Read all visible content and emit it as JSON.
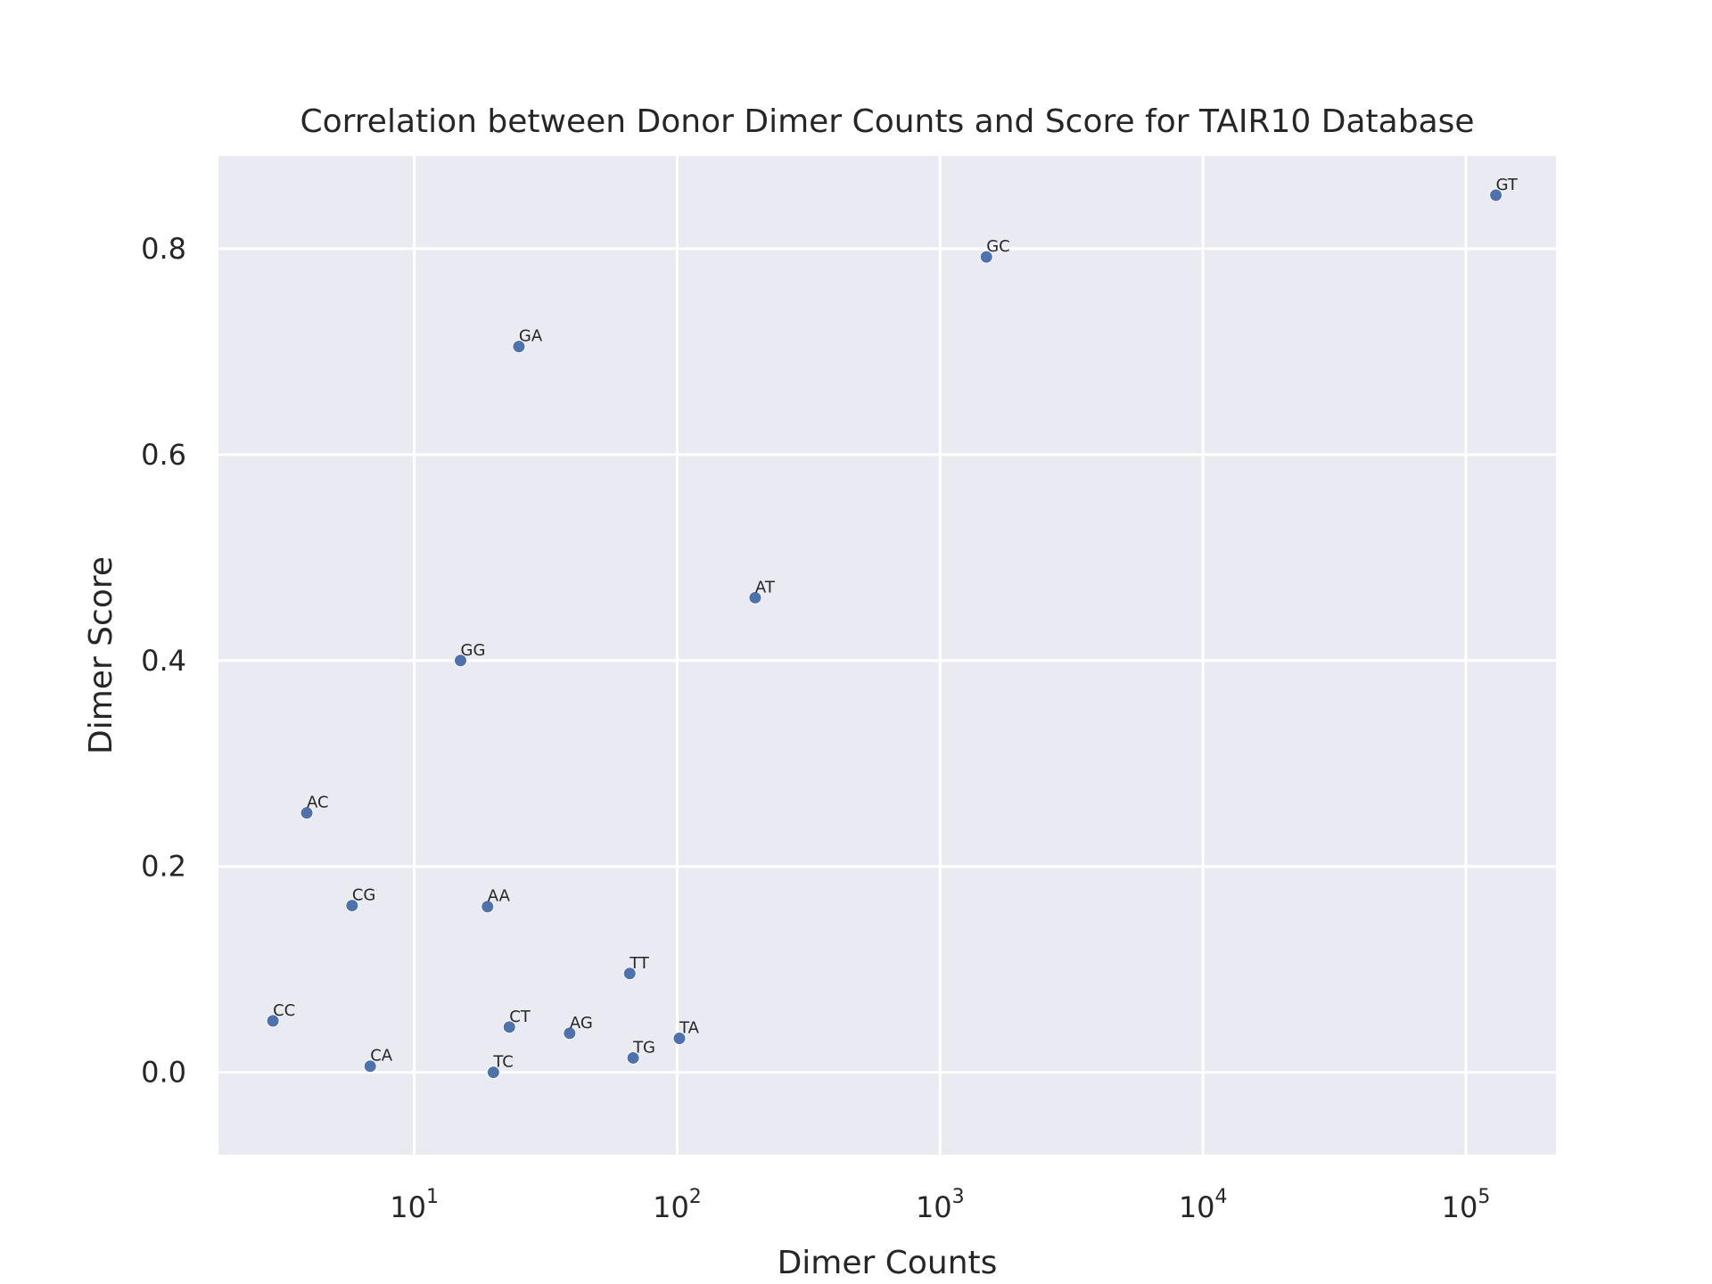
{
  "chart_data": {
    "type": "scatter",
    "title": "Correlation between Donor Dimer Counts and Score for TAIR10 Database",
    "xlabel": "Dimer Counts",
    "ylabel": "Dimer Score",
    "xscale": "log",
    "xlim": [
      1.8,
      220000
    ],
    "ylim": [
      -0.08,
      0.89
    ],
    "grid": true,
    "background_color": "#eaeaf2",
    "point_color": "#4c72b0",
    "x_ticks": [
      {
        "value": 10,
        "base": "10",
        "exp": "1"
      },
      {
        "value": 100,
        "base": "10",
        "exp": "2"
      },
      {
        "value": 1000,
        "base": "10",
        "exp": "3"
      },
      {
        "value": 10000,
        "base": "10",
        "exp": "4"
      },
      {
        "value": 100000,
        "base": "10",
        "exp": "5"
      }
    ],
    "y_ticks": [
      {
        "value": 0.0,
        "label": "0.0"
      },
      {
        "value": 0.2,
        "label": "0.2"
      },
      {
        "value": 0.4,
        "label": "0.4"
      },
      {
        "value": 0.6,
        "label": "0.6"
      },
      {
        "value": 0.8,
        "label": "0.8"
      }
    ],
    "points": [
      {
        "label": "GT",
        "x": 130000,
        "y": 0.852
      },
      {
        "label": "GC",
        "x": 1500,
        "y": 0.792
      },
      {
        "label": "GA",
        "x": 25,
        "y": 0.705
      },
      {
        "label": "AT",
        "x": 198,
        "y": 0.461
      },
      {
        "label": "GG",
        "x": 15,
        "y": 0.4
      },
      {
        "label": "AC",
        "x": 3.9,
        "y": 0.252
      },
      {
        "label": "CG",
        "x": 5.8,
        "y": 0.162
      },
      {
        "label": "AA",
        "x": 19,
        "y": 0.161
      },
      {
        "label": "TT",
        "x": 66,
        "y": 0.096
      },
      {
        "label": "CC",
        "x": 2.9,
        "y": 0.05
      },
      {
        "label": "CT",
        "x": 23,
        "y": 0.044
      },
      {
        "label": "AG",
        "x": 39,
        "y": 0.038
      },
      {
        "label": "TA",
        "x": 102,
        "y": 0.033
      },
      {
        "label": "TG",
        "x": 68,
        "y": 0.014
      },
      {
        "label": "CA",
        "x": 6.8,
        "y": 0.006
      },
      {
        "label": "TC",
        "x": 20,
        "y": 0.0
      }
    ]
  }
}
